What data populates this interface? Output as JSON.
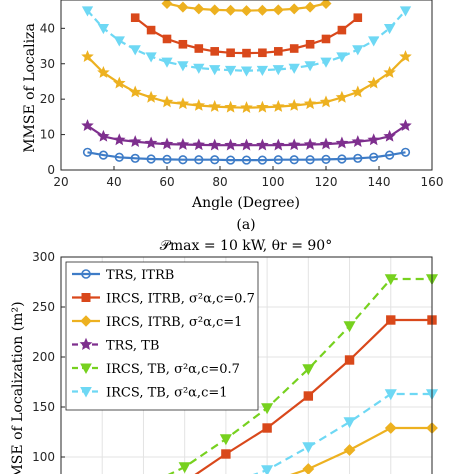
{
  "colors": {
    "blue": "#3E7CC7",
    "red": "#D9481B",
    "gold": "#EDB120",
    "purple": "#7E2F8E",
    "green": "#77D11F",
    "cyan": "#6ED8F4"
  },
  "chart_data": [
    {
      "type": "line",
      "subcaption": "(a)",
      "xlabel": "Angle (Degree)",
      "ylabel": "MMSE of Localiza",
      "xlim": [
        20,
        160
      ],
      "ylim": [
        0,
        48
      ],
      "xticks": [
        "20",
        "40",
        "60",
        "80",
        "100",
        "120",
        "140",
        "160"
      ],
      "yticks": [
        "0",
        "10",
        "20",
        "30",
        "40"
      ],
      "grid": false,
      "series": [
        {
          "style": "blue",
          "marker": "circle",
          "x": [
            30,
            36,
            42,
            48,
            54,
            60,
            66,
            72,
            78,
            84,
            90,
            96,
            102,
            108,
            114,
            120,
            126,
            132,
            138,
            144,
            150
          ],
          "y": [
            5.0,
            4.2,
            3.6,
            3.3,
            3.1,
            3.0,
            2.9,
            2.9,
            2.9,
            2.8,
            2.8,
            2.8,
            2.9,
            2.9,
            2.9,
            3.0,
            3.1,
            3.3,
            3.6,
            4.2,
            5.0
          ]
        },
        {
          "style": "purple",
          "marker": "star",
          "x": [
            30,
            36,
            42,
            48,
            54,
            60,
            66,
            72,
            78,
            84,
            90,
            96,
            102,
            108,
            114,
            120,
            126,
            132,
            138,
            144,
            150
          ],
          "y": [
            12.5,
            9.5,
            8.5,
            8.0,
            7.6,
            7.3,
            7.2,
            7.1,
            7.0,
            7.0,
            7.0,
            7.0,
            7.0,
            7.1,
            7.2,
            7.3,
            7.6,
            8.0,
            8.5,
            9.5,
            12.5
          ]
        },
        {
          "style": "gold",
          "marker": "star",
          "x": [
            30,
            36,
            42,
            48,
            54,
            60,
            66,
            72,
            78,
            84,
            90,
            96,
            102,
            108,
            114,
            120,
            126,
            132,
            138,
            144,
            150
          ],
          "y": [
            32,
            27.5,
            24.5,
            22,
            20.5,
            19.2,
            18.7,
            18.2,
            17.9,
            17.7,
            17.6,
            17.7,
            17.9,
            18.2,
            18.7,
            19.2,
            20.5,
            22,
            24.5,
            27.5,
            32
          ]
        },
        {
          "style": "cyan",
          "marker": "triangle-down",
          "x": [
            30,
            36,
            42,
            48,
            54,
            60,
            66,
            72,
            78,
            84,
            90,
            96,
            102,
            108,
            114,
            120,
            126,
            132,
            138,
            144,
            150
          ],
          "y": [
            45,
            40,
            36.5,
            34,
            32,
            30.5,
            29.5,
            28.8,
            28.4,
            28.2,
            28.0,
            28.2,
            28.4,
            28.8,
            29.5,
            30.5,
            32,
            34,
            36.5,
            40,
            45
          ]
        },
        {
          "style": "red",
          "marker": "square",
          "x": [
            48,
            54,
            60,
            66,
            72,
            78,
            84,
            90,
            96,
            102,
            108,
            114,
            120,
            126,
            132
          ],
          "y": [
            43,
            39.5,
            37,
            35.5,
            34.3,
            33.5,
            33.1,
            33.0,
            33.1,
            33.5,
            34.3,
            35.5,
            37,
            39.5,
            43
          ]
        },
        {
          "style": "gold",
          "marker": "diamond",
          "x": [
            60,
            66,
            72,
            78,
            84,
            90,
            96,
            102,
            108,
            114,
            120
          ],
          "y": [
            47,
            46,
            45.5,
            45.2,
            45.1,
            45.0,
            45.1,
            45.2,
            45.5,
            46,
            47
          ]
        }
      ]
    },
    {
      "type": "line",
      "title": "𝒫max = 10 kW, θr = 90°",
      "xlabel": "",
      "ylabel": "MSE of Localization (m²)",
      "xlim": [
        0,
        9
      ],
      "ylim": [
        70,
        300
      ],
      "yticks": [
        "100",
        "150",
        "200",
        "250",
        "300"
      ],
      "grid": true,
      "legend_position": "top-left",
      "legend": [
        {
          "style": "blue",
          "marker": "circle",
          "dash": "solid",
          "label": "TRS, ITRB"
        },
        {
          "style": "red",
          "marker": "square",
          "dash": "solid",
          "label": "IRCS, ITRB, σ²α,c=0.7"
        },
        {
          "style": "gold",
          "marker": "diamond",
          "dash": "solid",
          "label": "IRCS, ITRB, σ²α,c=1"
        },
        {
          "style": "purple",
          "marker": "star",
          "dash": "dashed",
          "label": "TRS, TB"
        },
        {
          "style": "green",
          "marker": "triangle-down",
          "dash": "dashed",
          "label": "IRCS, TB, σ²α,c=0.7"
        },
        {
          "style": "cyan",
          "marker": "triangle-down",
          "dash": "dashed",
          "label": "IRCS, TB, σ²α,c=1"
        }
      ],
      "series": [
        {
          "style": "red",
          "marker": "square",
          "dash": "solid",
          "x": [
            3,
            4,
            5,
            6,
            7,
            8,
            9
          ],
          "y": [
            75,
            103,
            129,
            161,
            197,
            237,
            237
          ]
        },
        {
          "style": "green",
          "marker": "triangle-down",
          "dash": "dashed",
          "x": [
            2,
            3,
            4,
            5,
            6,
            7,
            8,
            9
          ],
          "y": [
            70,
            90,
            118,
            149,
            188,
            231,
            278,
            278
          ]
        },
        {
          "style": "cyan",
          "marker": "triangle-down",
          "dash": "dashed",
          "x": [
            4,
            5,
            6,
            7,
            8,
            9
          ],
          "y": [
            72,
            87,
            110,
            135,
            163,
            163
          ]
        },
        {
          "style": "gold",
          "marker": "diamond",
          "dash": "solid",
          "x": [
            5,
            6,
            7,
            8,
            9
          ],
          "y": [
            74,
            88,
            107,
            129,
            129
          ]
        }
      ]
    }
  ]
}
